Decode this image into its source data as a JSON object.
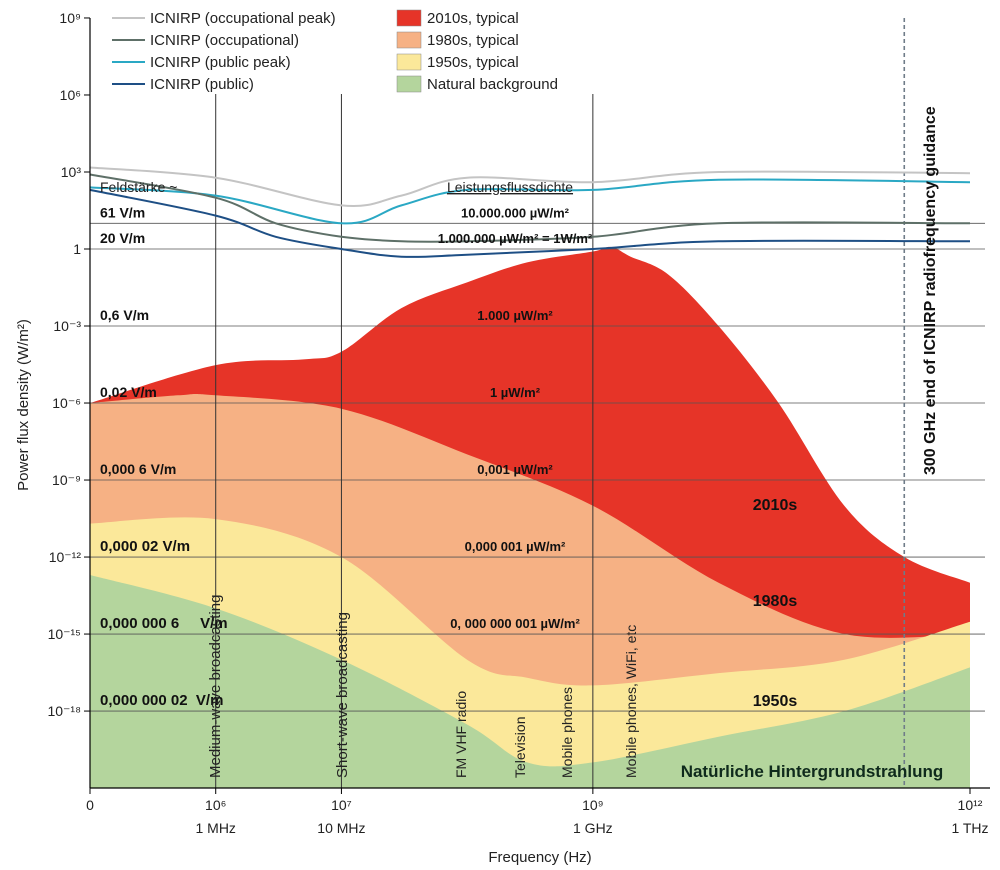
{
  "chart_data": {
    "type": "area",
    "xlabel": "Frequency (Hz)",
    "ylabel": "Power flux density (W/m²)",
    "x_scale": "log",
    "xlim": [
      0,
      1000000000000.0
    ],
    "ylim": [
      1e-21,
      1000000000.0
    ],
    "x_ticks": [
      {
        "value": 0,
        "label": "0",
        "sublabel": ""
      },
      {
        "value": 1000000.0,
        "label": "10⁶",
        "sublabel": "1 MHz"
      },
      {
        "value": 10000000.0,
        "label": "10⁷",
        "sublabel": "10   MHz"
      },
      {
        "value": 1000000000.0,
        "label": "10⁹",
        "sublabel": "1 GHz"
      },
      {
        "value": 1000000000000.0,
        "label": "10¹²",
        "sublabel": "1 THz"
      }
    ],
    "y_ticks": [
      "10⁹",
      "10⁶",
      "10³",
      "1",
      "10⁻³",
      "10⁻⁶",
      "10⁻⁹",
      "10⁻¹²",
      "10⁻¹⁵",
      "10⁻¹⁸"
    ],
    "y_tick_values": [
      1000000000.0,
      1000000.0,
      1000.0,
      1,
      0.001,
      1e-06,
      1e-09,
      1e-12,
      1e-15,
      1e-18
    ],
    "legend": {
      "placement": "top",
      "lines": [
        {
          "name": "ICNIRP (occupational peak)",
          "color": "#c4c4c4"
        },
        {
          "name": "ICNIRP (occupational)",
          "color": "#5e7068"
        },
        {
          "name": "ICNIRP (public peak)",
          "color": "#2aa8c4"
        },
        {
          "name": "ICNIRP (public)",
          "color": "#1e4f85"
        }
      ],
      "areas": [
        {
          "name": "2010s, typical",
          "color": "#e63428"
        },
        {
          "name": "1980s, typical",
          "color": "#f6b184"
        },
        {
          "name": "1950s, typical",
          "color": "#fbe89a"
        },
        {
          "name": "Natural background",
          "color": "#b4d59d"
        }
      ]
    },
    "line_series": [
      {
        "name": "ICNIRP (occupational peak)",
        "color": "#c4c4c4",
        "points": [
          [
            100000.0,
            1500
          ],
          [
            1000000.0,
            600
          ],
          [
            10000000.0,
            50
          ],
          [
            30000000.0,
            120
          ],
          [
            100000000.0,
            600
          ],
          [
            1000000000.0,
            400
          ],
          [
            10000000000.0,
            1000
          ],
          [
            1000000000000.0,
            900
          ]
        ]
      },
      {
        "name": "ICNIRP (public peak)",
        "color": "#2aa8c4",
        "points": [
          [
            100000.0,
            250
          ],
          [
            1000000.0,
            120
          ],
          [
            10000000.0,
            10
          ],
          [
            30000000.0,
            50
          ],
          [
            100000000.0,
            200
          ],
          [
            1000000000.0,
            200
          ],
          [
            10000000000.0,
            500
          ],
          [
            1000000000000.0,
            400
          ]
        ]
      },
      {
        "name": "ICNIRP (occupational)",
        "color": "#5e7068",
        "points": [
          [
            100000.0,
            800
          ],
          [
            1000000.0,
            100
          ],
          [
            3000000.0,
            10
          ],
          [
            10000000.0,
            3
          ],
          [
            30000000.0,
            2
          ],
          [
            100000000.0,
            2
          ],
          [
            1000000000.0,
            3
          ],
          [
            10000000000.0,
            10
          ],
          [
            1000000000000.0,
            10
          ]
        ]
      },
      {
        "name": "ICNIRP (public)",
        "color": "#1e4f85",
        "points": [
          [
            100000.0,
            200
          ],
          [
            1000000.0,
            20
          ],
          [
            3000000.0,
            3
          ],
          [
            10000000.0,
            1
          ],
          [
            30000000.0,
            0.5
          ],
          [
            100000000.0,
            0.6
          ],
          [
            1000000000.0,
            1
          ],
          [
            10000000000.0,
            2
          ],
          [
            1000000000000.0,
            2
          ]
        ]
      }
    ],
    "area_series": [
      {
        "name": "2010s, typical",
        "color": "#e63428",
        "points": [
          [
            100000.0,
            1e-06
          ],
          [
            1000000.0,
            3e-05
          ],
          [
            5000000.0,
            5e-05
          ],
          [
            10000000.0,
            0.0001
          ],
          [
            30000000.0,
            0.005
          ],
          [
            100000000.0,
            0.05
          ],
          [
            300000000.0,
            0.3
          ],
          [
            1000000000.0,
            0.8
          ],
          [
            1400000000.0,
            1.2
          ],
          [
            2000000000.0,
            0.5
          ],
          [
            4000000000.0,
            0.1
          ],
          [
            10000000000.0,
            0.001
          ],
          [
            30000000000.0,
            1e-06
          ],
          [
            100000000000.0,
            1e-10
          ],
          [
            300000000000.0,
            1e-12
          ],
          [
            1000000000000.0,
            1e-13
          ]
        ]
      },
      {
        "name": "1980s, typical",
        "color": "#f6b184",
        "points": [
          [
            100000.0,
            1e-06
          ],
          [
            500000.0,
            2e-06
          ],
          [
            1000000.0,
            2e-06
          ],
          [
            10000000.0,
            6e-07
          ],
          [
            100000000.0,
            1e-08
          ],
          [
            1000000000.0,
            1e-10
          ],
          [
            10000000000.0,
            1e-13
          ],
          [
            100000000000.0,
            1e-15
          ],
          [
            1000000000000.0,
            1e-15
          ]
        ]
      },
      {
        "name": "1950s, typical",
        "color": "#fbe89a",
        "points": [
          [
            100000.0,
            2e-11
          ],
          [
            1000000.0,
            3e-11
          ],
          [
            10000000.0,
            1e-12
          ],
          [
            100000000.0,
            1e-16
          ],
          [
            300000000.0,
            2e-17
          ],
          [
            1000000000.0,
            1e-17
          ],
          [
            10000000000.0,
            3e-17
          ],
          [
            100000000000.0,
            1e-16
          ],
          [
            1000000000000.0,
            3e-15
          ]
        ]
      },
      {
        "name": "Natural background",
        "color": "#b4d59d",
        "points": [
          [
            100000.0,
            2e-13
          ],
          [
            1000000.0,
            1e-14
          ],
          [
            10000000.0,
            1e-16
          ],
          [
            100000000.0,
            3e-19
          ],
          [
            300000000.0,
            1e-20
          ],
          [
            1000000000.0,
            1e-20
          ],
          [
            10000000000.0,
            1e-19
          ],
          [
            100000000000.0,
            1e-18
          ],
          [
            1000000000000.0,
            5e-17
          ]
        ]
      }
    ],
    "horizontal_lines": [
      {
        "value": 10.0,
        "field": "61 V/m",
        "flux": "10.000.000 µW/m²"
      },
      {
        "value": 1.0,
        "field": "20 V/m",
        "flux": "1.000.000 µW/m² = 1W/m²"
      },
      {
        "value": 0.001,
        "field": "0,6 V/m",
        "flux": "1.000 µW/m²"
      },
      {
        "value": 1e-06,
        "field": "0,02 V/m",
        "flux": "1 µW/m²"
      },
      {
        "value": 1e-09,
        "field": "0,000 6 V/m",
        "flux": "0,001 µW/m²"
      },
      {
        "value": 1e-12,
        "field": "0,000 02 V/m",
        "flux": "0,000 001 µW/m²"
      },
      {
        "value": 1e-15,
        "field": "0,000 000 6     V/m",
        "flux": "0, 000 000 001 µW/m²"
      },
      {
        "value": 1e-18,
        "field": "0,000 000 02  V/m",
        "flux": ""
      }
    ],
    "column_headers": {
      "field": "Feldstärke ~",
      "flux": "Leistungsflussdichte"
    },
    "vertical_markers": [
      {
        "x": 1000000.0,
        "label": "Medium-wave broadcasting"
      },
      {
        "x": 10000000.0,
        "label": "Short-wave broadcasting"
      },
      {
        "x": 1000000000.0,
        "label": ""
      }
    ],
    "application_labels": [
      {
        "x": 200000000.0,
        "label": "FM VHF radio"
      },
      {
        "x": 400000000.0,
        "label": "Television"
      },
      {
        "x": 700000000.0,
        "label": "Mobile phones"
      },
      {
        "x": 1600000000.0,
        "label": "Mobile phones, WiFi, etc"
      }
    ],
    "boundary": {
      "x": 300000000000.0,
      "label": "300 GHz end of ICNIRP radiofrequency guidance"
    },
    "region_labels": [
      {
        "text": "2010s"
      },
      {
        "text": "1980s"
      },
      {
        "text": "1950s"
      },
      {
        "text": "Natürliche Hintergrundstrahlung"
      }
    ]
  }
}
